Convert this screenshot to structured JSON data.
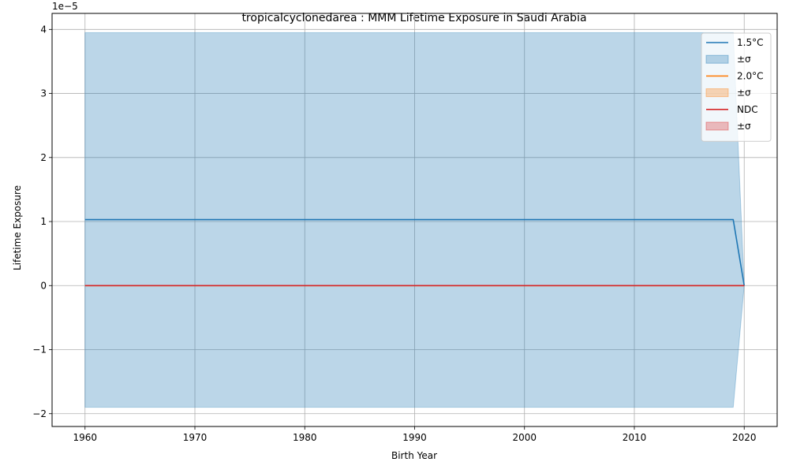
{
  "chart_data": {
    "type": "line",
    "title": "tropicalcyclonedarea : MMM Lifetime Exposure in Saudi Arabia",
    "xlabel": "Birth Year",
    "ylabel": "Lifetime Exposure",
    "y_offset_label": "1e−5",
    "y_scale": 1e-05,
    "xlim": [
      1957,
      2023
    ],
    "ylim": [
      -2.2,
      4.25
    ],
    "x_ticks": [
      1960,
      1970,
      1980,
      1990,
      2000,
      2010,
      2020
    ],
    "y_ticks": [
      -2,
      -1,
      0,
      1,
      2,
      3,
      4
    ],
    "y_tick_labels": [
      "−2",
      "−1",
      "0",
      "1",
      "2",
      "3",
      "4"
    ],
    "grid": true,
    "legend_position": "top-right",
    "x": [
      1960,
      1970,
      1980,
      1990,
      2000,
      2010,
      2015,
      2019,
      2020
    ],
    "series": [
      {
        "name": "1.5°C",
        "color": "#1f77b4",
        "values": [
          1.03,
          1.03,
          1.03,
          1.03,
          1.03,
          1.03,
          1.03,
          1.03,
          0.0
        ],
        "band_name": "±σ",
        "band_upper": [
          3.95,
          3.95,
          3.95,
          3.95,
          3.95,
          3.95,
          3.95,
          3.95,
          0.0
        ],
        "band_lower": [
          -1.9,
          -1.9,
          -1.9,
          -1.9,
          -1.9,
          -1.9,
          -1.9,
          -1.9,
          0.0
        ]
      },
      {
        "name": "2.0°C",
        "color": "#ff7f0e",
        "values": [
          0,
          0,
          0,
          0,
          0,
          0,
          0,
          0,
          0
        ],
        "band_name": "±σ",
        "band_upper": [
          0,
          0,
          0,
          0,
          0,
          0,
          0,
          0,
          0
        ],
        "band_lower": [
          0,
          0,
          0,
          0,
          0,
          0,
          0,
          0,
          0
        ]
      },
      {
        "name": "NDC",
        "color": "#d62728",
        "values": [
          0,
          0,
          0,
          0,
          0,
          0,
          0,
          0,
          0
        ],
        "band_name": "±σ",
        "band_upper": [
          0,
          0,
          0,
          0,
          0,
          0,
          0,
          0,
          0
        ],
        "band_lower": [
          0,
          0,
          0,
          0,
          0,
          0,
          0,
          0,
          0
        ]
      }
    ]
  }
}
